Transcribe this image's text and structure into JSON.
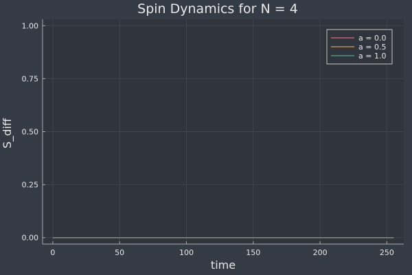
{
  "chart_data": {
    "type": "line",
    "title": "Spin Dynamics for N = 4",
    "xlabel": "time",
    "ylabel": "S_diff",
    "xlim": [
      -7.65,
      262.65
    ],
    "ylim": [
      -0.03,
      1.03
    ],
    "xticks": [
      0,
      50,
      100,
      150,
      200,
      250
    ],
    "xtick_labels": [
      "0",
      "50",
      "100",
      "150",
      "200",
      "250"
    ],
    "yticks": [
      0.0,
      0.25,
      0.5,
      0.75,
      1.0
    ],
    "ytick_labels": [
      "0.00",
      "0.25",
      "0.50",
      "0.75",
      "1.00"
    ],
    "grid": true,
    "legend_position": "top-right",
    "x": [
      0,
      255
    ],
    "series": [
      {
        "name": "a = 0.0",
        "color": "#e26a78",
        "values": [
          0,
          0
        ]
      },
      {
        "name": "a = 0.5",
        "color": "#d7a14f",
        "values": [
          0,
          0
        ]
      },
      {
        "name": "a = 1.0",
        "color": "#4fa78f",
        "values": [
          0,
          0
        ]
      }
    ]
  },
  "colors": {
    "background": "#353b45",
    "plot_area": "#30343c",
    "axis": "#a8aab0",
    "grid": "#40454e",
    "text": "#e8e8e8"
  }
}
